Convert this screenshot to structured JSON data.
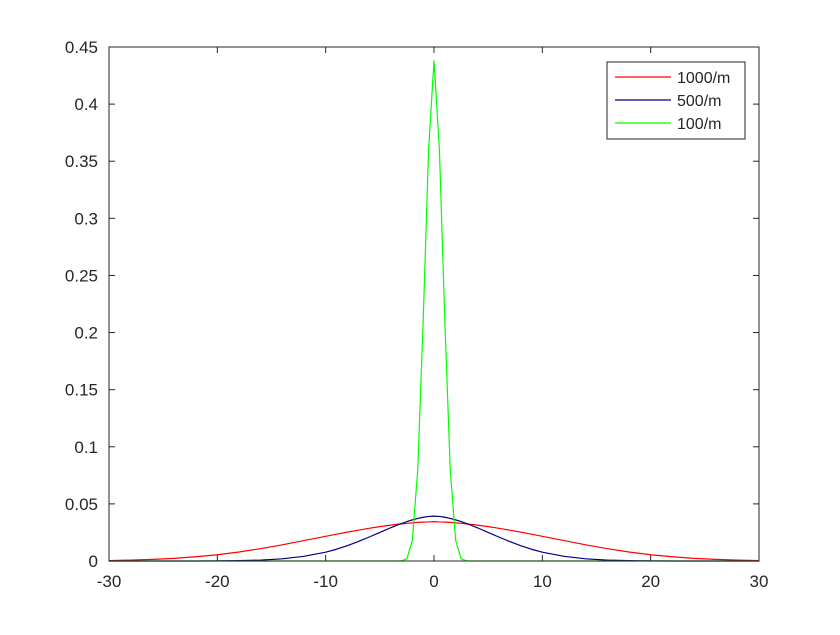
{
  "chart_data": {
    "type": "line",
    "title": "",
    "xlabel": "",
    "ylabel": "",
    "xlim": [
      -30,
      30
    ],
    "ylim": [
      0,
      0.45
    ],
    "xticks": [
      -30,
      -20,
      -10,
      0,
      10,
      20,
      30
    ],
    "yticks": [
      0,
      0.05,
      0.1,
      0.15,
      0.2,
      0.25,
      0.3,
      0.35,
      0.4,
      0.45
    ],
    "xtick_labels": [
      "-30",
      "-20",
      "-10",
      "0",
      "10",
      "20",
      "30"
    ],
    "ytick_labels": [
      "0",
      "0.05",
      "0.1",
      "0.15",
      "0.2",
      "0.25",
      "0.3",
      "0.35",
      "0.4",
      "0.45"
    ],
    "grid": false,
    "legend_position": "top-right",
    "x": [
      -30,
      -28,
      -26,
      -24,
      -22,
      -20,
      -18,
      -16,
      -14,
      -12,
      -10,
      -9,
      -8,
      -7,
      -6,
      -5,
      -4,
      -3.5,
      -3,
      -2.5,
      -2,
      -1.5,
      -1,
      -0.5,
      0,
      0.5,
      1,
      1.5,
      2,
      2.5,
      3,
      3.5,
      4,
      5,
      6,
      7,
      8,
      9,
      10,
      12,
      14,
      16,
      18,
      20,
      22,
      24,
      26,
      28,
      30
    ],
    "series": [
      {
        "name": "1000/m",
        "color": "#ff0000",
        "values": [
          0.0004,
          0.0008,
          0.0014,
          0.0023,
          0.0037,
          0.0055,
          0.0079,
          0.0108,
          0.0142,
          0.0179,
          0.0216,
          0.0235,
          0.0253,
          0.027,
          0.0286,
          0.0301,
          0.0314,
          0.032,
          0.0325,
          0.033,
          0.0334,
          0.0338,
          0.034,
          0.0342,
          0.0345,
          0.0342,
          0.034,
          0.0338,
          0.0334,
          0.033,
          0.0325,
          0.032,
          0.0314,
          0.0301,
          0.0286,
          0.027,
          0.0253,
          0.0235,
          0.0216,
          0.0179,
          0.0142,
          0.0108,
          0.0079,
          0.0055,
          0.0037,
          0.0023,
          0.0014,
          0.0008,
          0.0004
        ]
      },
      {
        "name": "500/m",
        "color": "#000080",
        "values": [
          0,
          0,
          0,
          0,
          0,
          0.0001,
          0.0003,
          0.0008,
          0.0019,
          0.0041,
          0.0077,
          0.0103,
          0.0134,
          0.017,
          0.0209,
          0.025,
          0.0291,
          0.031,
          0.0328,
          0.0345,
          0.036,
          0.0373,
          0.0383,
          0.039,
          0.0393,
          0.039,
          0.0383,
          0.0373,
          0.036,
          0.0345,
          0.0328,
          0.031,
          0.0291,
          0.025,
          0.0209,
          0.017,
          0.0134,
          0.0103,
          0.0077,
          0.0041,
          0.0019,
          0.0008,
          0.0003,
          0.0001,
          0,
          0,
          0,
          0,
          0
        ]
      },
      {
        "name": "100/m",
        "color": "#00ff00",
        "values": [
          0,
          0,
          0,
          0,
          0,
          0,
          0,
          0,
          0,
          0,
          0,
          0,
          0,
          0,
          0,
          0,
          0,
          0,
          0.0001,
          0.002,
          0.018,
          0.08,
          0.21,
          0.36,
          0.438,
          0.36,
          0.21,
          0.08,
          0.018,
          0.002,
          0.0001,
          0,
          0,
          0,
          0,
          0,
          0,
          0,
          0,
          0,
          0,
          0,
          0,
          0,
          0,
          0,
          0,
          0,
          0
        ]
      }
    ]
  }
}
